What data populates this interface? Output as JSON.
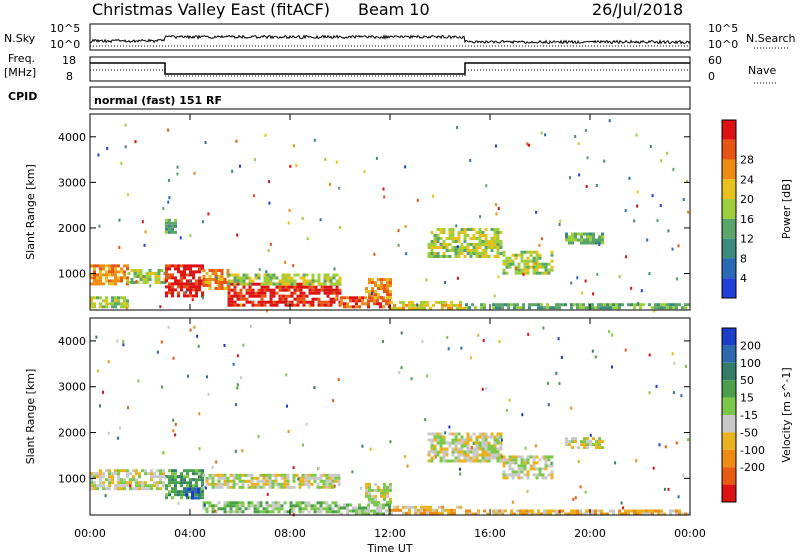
{
  "header": {
    "title": "Christmas Valley East (fitACF)",
    "beam": "Beam 10",
    "date": "26/Jul/2018"
  },
  "labels": {
    "nsky": "N.Sky",
    "nsky_top": "10^5",
    "nsky_bot": "10^0",
    "nsearch": "N.Search",
    "nsearch_top": "10^5",
    "nsearch_bot": "10^0",
    "freq": "Freq.",
    "freq_unit": "[MHz]",
    "freq_top": "18",
    "freq_bot": "8",
    "nave": "Nave",
    "nave_top": "60",
    "nave_bot": "0",
    "cpid": "CPID",
    "cpid_text": "normal (fast) 151 RF"
  },
  "colors": {
    "power_scale": [
      "#1f3fd8",
      "#2a6bb8",
      "#3c8c7d",
      "#5aa56a",
      "#9ccf3b",
      "#e6c21a",
      "#ef8a12",
      "#e85412",
      "#dd1111"
    ],
    "velocity_scale": [
      "#1a3ec9",
      "#2d6ab0",
      "#347d68",
      "#4aa04a",
      "#7cc94a",
      "#c9c9c9",
      "#e9b21e",
      "#ef8a12",
      "#e85a10",
      "#dd1212"
    ]
  },
  "chart_data": [
    {
      "type": "heatmap",
      "name": "power",
      "ylabel": "Slant Range [km]",
      "xlabel": "",
      "xticks": [
        "00:00",
        "04:00",
        "08:00",
        "12:00",
        "16:00",
        "20:00",
        "00:00"
      ],
      "yticks": [
        "1000",
        "2000",
        "3000",
        "4000"
      ],
      "ylim": [
        200,
        4500
      ],
      "colorbar": {
        "label": "Power [dB]",
        "ticks": [
          "4",
          "8",
          "12",
          "16",
          "20",
          "24",
          "28"
        ]
      },
      "regions": [
        {
          "t0": 0.0,
          "t1": 1.5,
          "r0": 300,
          "r1": 500,
          "level": 4
        },
        {
          "t0": 0.0,
          "t1": 1.5,
          "r0": 800,
          "r1": 1200,
          "level": 6
        },
        {
          "t0": 1.5,
          "t1": 3.0,
          "r0": 800,
          "r1": 1100,
          "level": 4
        },
        {
          "t0": 3.0,
          "t1": 4.5,
          "r0": 500,
          "r1": 1200,
          "level": 8
        },
        {
          "t0": 4.5,
          "t1": 5.5,
          "r0": 700,
          "r1": 1100,
          "level": 6
        },
        {
          "t0": 5.5,
          "t1": 10.0,
          "r0": 300,
          "r1": 800,
          "level": 8
        },
        {
          "t0": 5.5,
          "t1": 10.0,
          "r0": 800,
          "r1": 1000,
          "level": 4
        },
        {
          "t0": 10.0,
          "t1": 12.0,
          "r0": 300,
          "r1": 500,
          "level": 7
        },
        {
          "t0": 11.0,
          "t1": 12.0,
          "r0": 500,
          "r1": 900,
          "level": 6
        },
        {
          "t0": 12.0,
          "t1": 15.0,
          "r0": 250,
          "r1": 400,
          "level": 5
        },
        {
          "t0": 15.0,
          "t1": 24.0,
          "r0": 250,
          "r1": 350,
          "level": 3
        },
        {
          "t0": 13.5,
          "t1": 16.5,
          "r0": 1400,
          "r1": 2000,
          "level": 4
        },
        {
          "t0": 16.5,
          "t1": 18.5,
          "r0": 1000,
          "r1": 1500,
          "level": 4
        },
        {
          "t0": 19.0,
          "t1": 20.5,
          "r0": 1700,
          "r1": 1900,
          "level": 3
        },
        {
          "t0": 3.0,
          "t1": 3.4,
          "r0": 1900,
          "r1": 2200,
          "level": 3
        }
      ]
    },
    {
      "type": "heatmap",
      "name": "velocity",
      "ylabel": "Slant Range [km]",
      "xlabel": "Time UT",
      "xticks": [
        "00:00",
        "04:00",
        "08:00",
        "12:00",
        "16:00",
        "20:00",
        "00:00"
      ],
      "yticks": [
        "1000",
        "2000",
        "3000",
        "4000"
      ],
      "ylim": [
        200,
        4500
      ],
      "colorbar": {
        "label": "Velocity [m s^-1]",
        "ticks": [
          "200",
          "100",
          "50",
          "15",
          "-15",
          "-50",
          "-100",
          "-200"
        ]
      },
      "regions": [
        {
          "t0": 0.0,
          "t1": 3.0,
          "r0": 800,
          "r1": 1200,
          "level": 5
        },
        {
          "t0": 3.0,
          "t1": 4.5,
          "r0": 600,
          "r1": 1200,
          "level": 3
        },
        {
          "t0": 3.8,
          "t1": 4.3,
          "r0": 600,
          "r1": 800,
          "level": 0
        },
        {
          "t0": 4.5,
          "t1": 10.0,
          "r0": 800,
          "r1": 1100,
          "level": 5
        },
        {
          "t0": 4.5,
          "t1": 10.0,
          "r0": 250,
          "r1": 500,
          "level": 4
        },
        {
          "t0": 10.0,
          "t1": 12.0,
          "r0": 250,
          "r1": 450,
          "level": 4
        },
        {
          "t0": 12.0,
          "t1": 15.0,
          "r0": 250,
          "r1": 400,
          "level": 6
        },
        {
          "t0": 15.0,
          "t1": 24.0,
          "r0": 250,
          "r1": 320,
          "level": 6
        },
        {
          "t0": 13.5,
          "t1": 16.5,
          "r0": 1400,
          "r1": 2000,
          "level": 5
        },
        {
          "t0": 16.5,
          "t1": 18.5,
          "r0": 1000,
          "r1": 1500,
          "level": 5
        },
        {
          "t0": 19.0,
          "t1": 20.5,
          "r0": 1700,
          "r1": 1900,
          "level": 5
        },
        {
          "t0": 11.0,
          "t1": 12.0,
          "r0": 500,
          "r1": 900,
          "level": 5
        }
      ]
    }
  ]
}
